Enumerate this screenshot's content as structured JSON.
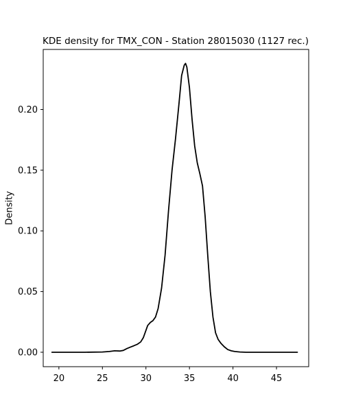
{
  "chart_data": {
    "type": "line",
    "title": "KDE density for TMX_CON - Station 28015030 (1127 rec.)",
    "xlabel": "",
    "ylabel": "Density",
    "xlim": [
      18.2,
      48.7
    ],
    "ylim": [
      -0.0119,
      0.2495
    ],
    "xticks": [
      20,
      25,
      30,
      35,
      40,
      45
    ],
    "yticks": [
      0.0,
      0.05,
      0.1,
      0.15,
      0.2
    ],
    "ytick_format": 2,
    "grid": false,
    "legend": "none",
    "line_color": "#000000",
    "series": [
      {
        "x": [
          19.2,
          21.0,
          23.0,
          25.0,
          25.8,
          26.4,
          27.0,
          27.4,
          27.8,
          28.2,
          28.6,
          29.0,
          29.4,
          29.7,
          30.0,
          30.2,
          30.5,
          30.8,
          31.1,
          31.4,
          31.8,
          32.2,
          32.6,
          33.0,
          33.4,
          33.8,
          34.1,
          34.4,
          34.55,
          34.7,
          35.0,
          35.3,
          35.6,
          35.9,
          36.2,
          36.5,
          36.8,
          37.1,
          37.4,
          37.7,
          38.0,
          38.3,
          38.6,
          39.0,
          39.4,
          39.8,
          40.2,
          40.8,
          41.5,
          42.5,
          44.0,
          47.4
        ],
        "y": [
          0.0,
          0.0,
          0.0,
          0.0002,
          0.0006,
          0.0012,
          0.001,
          0.0015,
          0.003,
          0.0042,
          0.0053,
          0.0065,
          0.0085,
          0.012,
          0.018,
          0.022,
          0.0245,
          0.026,
          0.029,
          0.036,
          0.053,
          0.08,
          0.117,
          0.15,
          0.176,
          0.205,
          0.228,
          0.2365,
          0.238,
          0.235,
          0.218,
          0.192,
          0.17,
          0.156,
          0.147,
          0.137,
          0.112,
          0.08,
          0.05,
          0.029,
          0.016,
          0.0105,
          0.0075,
          0.0045,
          0.0022,
          0.0012,
          0.0006,
          0.0002,
          0.0,
          0.0,
          0.0,
          0.0
        ]
      }
    ]
  }
}
